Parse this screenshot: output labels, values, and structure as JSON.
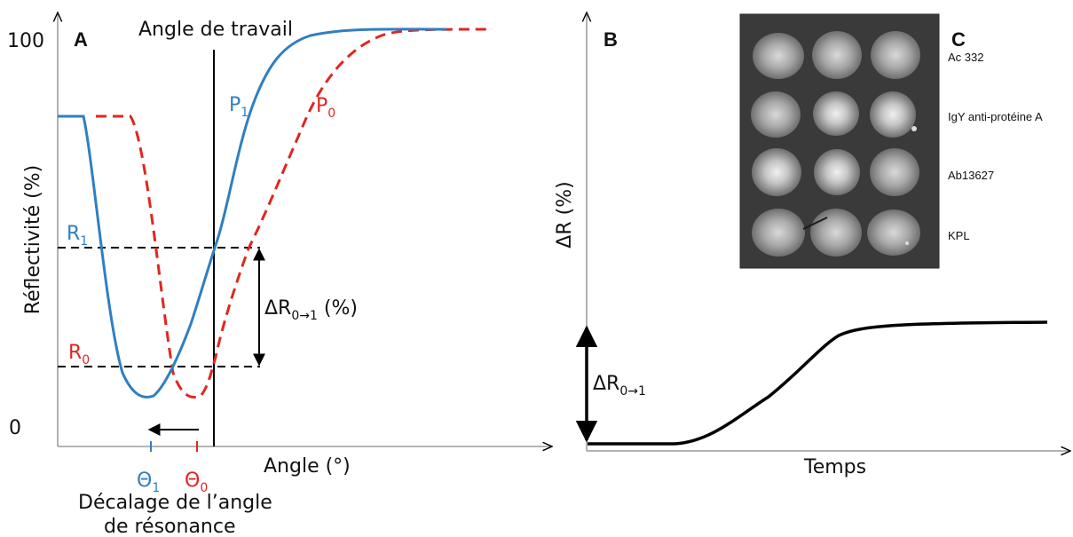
{
  "panel_a": {
    "letter": "A",
    "y_tick_top": "100",
    "y_tick_bottom": "0",
    "y_axis_label": "Réflectivité (%)",
    "x_axis_label": "Angle (°)",
    "working_angle_label": "Angle de travail",
    "curve_p1_base": "P",
    "curve_p1_sub": "1",
    "curve_p0_base": "P",
    "curve_p0_sub": "0",
    "r1_base": "R",
    "r1_sub": "1",
    "r0_base": "R",
    "r0_sub": "0",
    "delta_r_pre": "ΔR",
    "delta_r_sub": "0→1",
    "delta_r_post": " (%)",
    "theta1_base": "Θ",
    "theta1_sub": "1",
    "theta0_base": "Θ",
    "theta0_sub": "0",
    "shift_caption_line1": "Décalage de l’angle",
    "shift_caption_line2": "de résonance",
    "colors": {
      "p1": "#2f7fc2",
      "p0": "#e0261f"
    }
  },
  "panel_b": {
    "letter": "B",
    "y_axis_label": "ΔR (%)",
    "x_axis_label": "Temps",
    "delta_r_base": "ΔR",
    "delta_r_sub": "0→1"
  },
  "panel_c": {
    "letter": "C",
    "row_labels": [
      "Ac 332",
      "IgY anti-protéine A",
      "Ab13627",
      "KPL"
    ]
  }
}
